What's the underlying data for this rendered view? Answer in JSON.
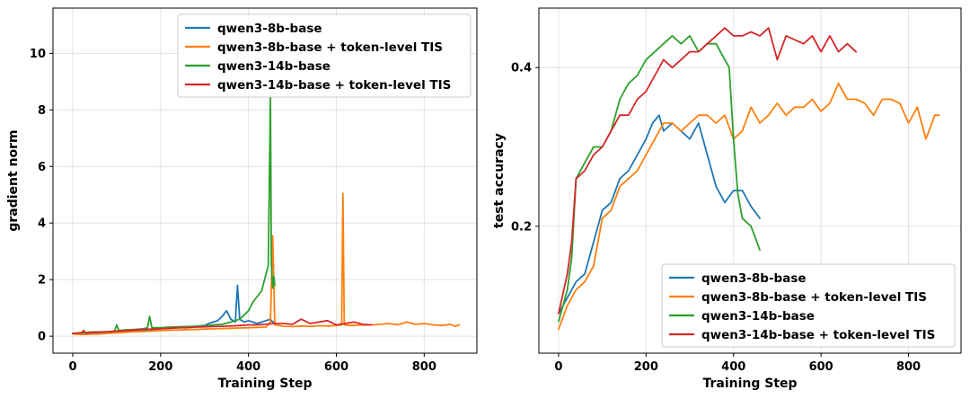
{
  "colors": {
    "qwen3-8b-base": "#1f77b4",
    "qwen3-8b-base + token-level TIS": "#ff7f0e",
    "qwen3-14b-base": "#2ca02c",
    "qwen3-14b-base + token-level TIS": "#d62728"
  },
  "chart_data": [
    {
      "type": "line",
      "xlabel": "Training Step",
      "ylabel": "gradient norm",
      "xlim": [
        -45,
        920
      ],
      "ylim": [
        -0.6,
        11.6
      ],
      "xticks": [
        0,
        200,
        400,
        600,
        800
      ],
      "yticks": [
        0,
        2,
        4,
        6,
        8,
        10
      ],
      "legend_position": "upper right",
      "legend": [
        "qwen3-8b-base",
        "qwen3-8b-base + token-level TIS",
        "qwen3-14b-base",
        "qwen3-14b-base + token-level TIS"
      ],
      "series": [
        {
          "name": "qwen3-8b-base",
          "x": [
            0,
            20,
            40,
            60,
            80,
            100,
            120,
            140,
            160,
            180,
            200,
            220,
            240,
            260,
            280,
            300,
            310,
            320,
            330,
            340,
            350,
            360,
            370,
            375,
            380,
            390,
            400,
            410,
            420,
            430,
            440,
            450,
            455,
            460
          ],
          "y": [
            0.1,
            0.08,
            0.1,
            0.12,
            0.14,
            0.16,
            0.18,
            0.2,
            0.22,
            0.24,
            0.26,
            0.28,
            0.3,
            0.33,
            0.35,
            0.38,
            0.45,
            0.5,
            0.55,
            0.7,
            0.9,
            0.6,
            0.5,
            1.8,
            0.6,
            0.5,
            0.55,
            0.5,
            0.45,
            0.5,
            0.55,
            0.6,
            0.5,
            0.5
          ]
        },
        {
          "name": "qwen3-8b-base + token-level TIS",
          "x": [
            0,
            20,
            40,
            60,
            80,
            100,
            120,
            140,
            160,
            180,
            200,
            220,
            240,
            260,
            280,
            300,
            320,
            340,
            360,
            380,
            400,
            420,
            440,
            450,
            455,
            460,
            480,
            500,
            520,
            540,
            560,
            580,
            600,
            612,
            615,
            618,
            630,
            650,
            680,
            700,
            720,
            740,
            760,
            780,
            800,
            820,
            840,
            860,
            870,
            880
          ],
          "y": [
            0.08,
            0.06,
            0.07,
            0.08,
            0.1,
            0.12,
            0.14,
            0.16,
            0.17,
            0.18,
            0.2,
            0.21,
            0.22,
            0.23,
            0.24,
            0.25,
            0.26,
            0.27,
            0.28,
            0.29,
            0.3,
            0.31,
            0.32,
            0.5,
            3.55,
            0.4,
            0.35,
            0.34,
            0.36,
            0.35,
            0.37,
            0.36,
            0.38,
            0.4,
            5.05,
            0.4,
            0.38,
            0.39,
            0.4,
            0.42,
            0.45,
            0.4,
            0.5,
            0.42,
            0.45,
            0.4,
            0.38,
            0.42,
            0.35,
            0.4
          ]
        },
        {
          "name": "qwen3-14b-base",
          "x": [
            0,
            20,
            40,
            60,
            80,
            95,
            100,
            105,
            120,
            140,
            160,
            170,
            175,
            180,
            200,
            220,
            240,
            260,
            280,
            300,
            320,
            340,
            360,
            380,
            400,
            410,
            420,
            430,
            440,
            445,
            450,
            452,
            455,
            458,
            460
          ],
          "y": [
            0.1,
            0.12,
            0.14,
            0.15,
            0.16,
            0.18,
            0.4,
            0.2,
            0.22,
            0.24,
            0.26,
            0.3,
            0.7,
            0.3,
            0.3,
            0.32,
            0.33,
            0.34,
            0.35,
            0.36,
            0.4,
            0.42,
            0.5,
            0.6,
            0.9,
            1.2,
            1.4,
            1.6,
            2.2,
            2.5,
            8.5,
            2.6,
            1.7,
            2.1,
            1.8
          ]
        },
        {
          "name": "qwen3-14b-base + token-level TIS",
          "x": [
            0,
            20,
            25,
            30,
            40,
            60,
            80,
            100,
            120,
            140,
            160,
            180,
            200,
            220,
            240,
            260,
            280,
            300,
            320,
            340,
            360,
            380,
            400,
            420,
            440,
            460,
            480,
            500,
            520,
            540,
            560,
            580,
            600,
            620,
            640,
            660,
            680
          ],
          "y": [
            0.1,
            0.12,
            0.2,
            0.1,
            0.14,
            0.15,
            0.16,
            0.18,
            0.2,
            0.22,
            0.24,
            0.25,
            0.26,
            0.28,
            0.3,
            0.3,
            0.32,
            0.33,
            0.34,
            0.35,
            0.36,
            0.38,
            0.4,
            0.4,
            0.42,
            0.45,
            0.45,
            0.42,
            0.6,
            0.45,
            0.5,
            0.55,
            0.4,
            0.45,
            0.5,
            0.42,
            0.4
          ]
        }
      ]
    },
    {
      "type": "line",
      "xlabel": "Training Step",
      "ylabel": "test accuracy",
      "xlim": [
        -45,
        920
      ],
      "ylim": [
        0.04,
        0.475
      ],
      "xticks": [
        0,
        200,
        400,
        600,
        800
      ],
      "yticks": [
        0.2,
        0.4
      ],
      "ytick_labels": [
        "0.2",
        "0.4"
      ],
      "legend_position": "lower right",
      "legend": [
        "qwen3-8b-base",
        "qwen3-8b-base + token-level TIS",
        "qwen3-14b-base",
        "qwen3-14b-base + token-level TIS"
      ],
      "series": [
        {
          "name": "qwen3-8b-base",
          "x": [
            0,
            20,
            40,
            60,
            80,
            100,
            120,
            140,
            160,
            180,
            200,
            215,
            230,
            240,
            260,
            280,
            300,
            320,
            340,
            360,
            380,
            400,
            420,
            440,
            460
          ],
          "y": [
            0.09,
            0.11,
            0.13,
            0.14,
            0.18,
            0.22,
            0.23,
            0.26,
            0.27,
            0.29,
            0.31,
            0.33,
            0.34,
            0.32,
            0.33,
            0.32,
            0.31,
            0.33,
            0.29,
            0.25,
            0.23,
            0.245,
            0.245,
            0.225,
            0.21
          ]
        },
        {
          "name": "qwen3-8b-base + token-level TIS",
          "x": [
            0,
            20,
            40,
            60,
            80,
            100,
            120,
            140,
            160,
            180,
            200,
            220,
            240,
            260,
            280,
            300,
            320,
            340,
            360,
            380,
            400,
            420,
            440,
            460,
            480,
            500,
            520,
            540,
            560,
            580,
            600,
            620,
            640,
            660,
            680,
            700,
            720,
            740,
            760,
            780,
            800,
            820,
            840,
            860,
            870
          ],
          "y": [
            0.07,
            0.1,
            0.12,
            0.13,
            0.15,
            0.21,
            0.22,
            0.25,
            0.26,
            0.27,
            0.29,
            0.31,
            0.33,
            0.33,
            0.32,
            0.33,
            0.34,
            0.34,
            0.33,
            0.34,
            0.31,
            0.32,
            0.35,
            0.33,
            0.34,
            0.355,
            0.34,
            0.35,
            0.35,
            0.36,
            0.345,
            0.355,
            0.38,
            0.36,
            0.36,
            0.355,
            0.34,
            0.36,
            0.36,
            0.355,
            0.33,
            0.35,
            0.31,
            0.34,
            0.34
          ]
        },
        {
          "name": "qwen3-14b-base",
          "x": [
            0,
            20,
            30,
            40,
            60,
            80,
            100,
            120,
            140,
            160,
            180,
            200,
            220,
            240,
            260,
            280,
            300,
            320,
            340,
            360,
            380,
            390,
            400,
            410,
            420,
            440,
            460
          ],
          "y": [
            0.08,
            0.12,
            0.16,
            0.26,
            0.28,
            0.3,
            0.3,
            0.32,
            0.36,
            0.38,
            0.39,
            0.41,
            0.42,
            0.43,
            0.44,
            0.43,
            0.44,
            0.42,
            0.43,
            0.43,
            0.41,
            0.4,
            0.31,
            0.24,
            0.21,
            0.2,
            0.17
          ]
        },
        {
          "name": "qwen3-14b-base + token-level TIS",
          "x": [
            0,
            20,
            30,
            40,
            60,
            80,
            100,
            120,
            140,
            160,
            180,
            200,
            220,
            240,
            260,
            280,
            300,
            320,
            340,
            360,
            380,
            400,
            420,
            440,
            460,
            480,
            500,
            520,
            540,
            560,
            580,
            600,
            620,
            640,
            660,
            680
          ],
          "y": [
            0.09,
            0.14,
            0.18,
            0.26,
            0.27,
            0.29,
            0.3,
            0.32,
            0.34,
            0.34,
            0.36,
            0.37,
            0.39,
            0.41,
            0.4,
            0.41,
            0.42,
            0.42,
            0.43,
            0.44,
            0.45,
            0.44,
            0.44,
            0.445,
            0.44,
            0.45,
            0.41,
            0.44,
            0.435,
            0.43,
            0.44,
            0.42,
            0.44,
            0.42,
            0.43,
            0.42
          ]
        }
      ]
    }
  ]
}
